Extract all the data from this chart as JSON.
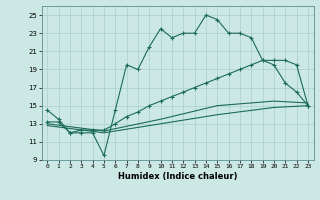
{
  "xlabel": "Humidex (Indice chaleur)",
  "xlim": [
    -0.5,
    23.5
  ],
  "ylim": [
    9,
    26
  ],
  "yticks": [
    9,
    11,
    13,
    15,
    17,
    19,
    21,
    23,
    25
  ],
  "xticks": [
    0,
    1,
    2,
    3,
    4,
    5,
    6,
    7,
    8,
    9,
    10,
    11,
    12,
    13,
    14,
    15,
    16,
    17,
    18,
    19,
    20,
    21,
    22,
    23
  ],
  "bg_color": "#cce8e4",
  "grid_color": "#aacfcb",
  "line_color": "#1a6b5a",
  "line1_x": [
    0,
    1,
    2,
    3,
    4,
    5,
    6,
    7,
    8,
    9,
    10,
    11,
    12,
    13,
    14,
    15,
    16,
    17,
    18,
    19,
    20,
    21,
    22,
    23
  ],
  "line1_y": [
    14.5,
    13.5,
    12.0,
    12.0,
    12.0,
    9.5,
    14.5,
    19.5,
    19.0,
    21.5,
    23.5,
    22.5,
    23.0,
    23.0,
    25.0,
    24.5,
    23.0,
    23.0,
    22.5,
    20.0,
    19.5,
    17.5,
    16.5,
    15.0
  ],
  "line2_x": [
    0,
    1,
    2,
    3,
    4,
    5,
    6,
    7,
    8,
    9,
    10,
    11,
    12,
    13,
    14,
    15,
    16,
    17,
    18,
    19,
    20,
    21,
    22,
    23
  ],
  "line2_y": [
    13.2,
    13.2,
    12.0,
    12.3,
    12.3,
    12.3,
    13.0,
    13.8,
    14.3,
    15.0,
    15.5,
    16.0,
    16.5,
    17.0,
    17.5,
    18.0,
    18.5,
    19.0,
    19.5,
    20.0,
    20.0,
    20.0,
    19.5,
    15.0
  ],
  "line3_x": [
    0,
    5,
    10,
    15,
    20,
    23
  ],
  "line3_y": [
    13.0,
    12.2,
    13.5,
    15.0,
    15.5,
    15.3
  ],
  "line4_x": [
    0,
    5,
    10,
    15,
    20,
    23
  ],
  "line4_y": [
    12.8,
    12.0,
    13.0,
    14.0,
    14.8,
    15.0
  ]
}
